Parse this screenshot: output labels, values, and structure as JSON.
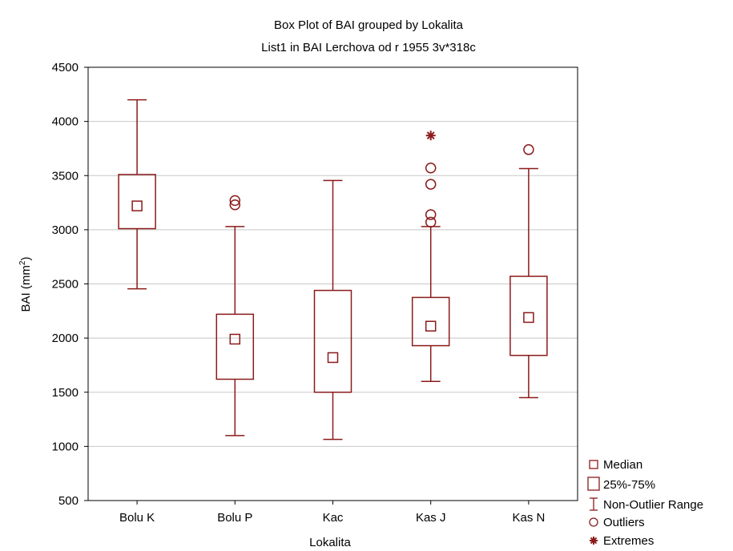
{
  "chart_data": {
    "type": "box",
    "title": "Box Plot of BAI grouped by  Lokalita",
    "subtitle": "List1 in BAI Lerchova od r 1955 3v*318c",
    "xlabel": "Lokalita",
    "ylabel": "BAI (mm²)",
    "ylabel_base": "BAI (mm",
    "ylabel_sup": "2",
    "ylabel_end": ")",
    "ylim": [
      500,
      4500
    ],
    "yticks": [
      500,
      1000,
      1500,
      2000,
      2500,
      3000,
      3500,
      4000,
      4500
    ],
    "grid": "horizontal",
    "categories": [
      "Bolu K",
      "Bolu P",
      "Kac",
      "Kas J",
      "Kas N"
    ],
    "boxes": [
      {
        "category": "Bolu K",
        "min": 2455,
        "q1": 3010,
        "median": 3220,
        "q3": 3510,
        "max": 4200,
        "outliers": [],
        "extremes": []
      },
      {
        "category": "Bolu P",
        "min": 1100,
        "q1": 1620,
        "median": 1990,
        "q3": 2220,
        "max": 3030,
        "outliers": [
          3230,
          3270
        ],
        "extremes": []
      },
      {
        "category": "Kac",
        "min": 1065,
        "q1": 1500,
        "median": 1820,
        "q3": 2440,
        "max": 3455,
        "outliers": [],
        "extremes": []
      },
      {
        "category": "Kas J",
        "min": 1600,
        "q1": 1930,
        "median": 2110,
        "q3": 2375,
        "max": 3030,
        "outliers": [
          3070,
          3140,
          3420,
          3570
        ],
        "extremes": [
          3870
        ]
      },
      {
        "category": "Kas N",
        "min": 1450,
        "q1": 1840,
        "median": 2190,
        "q3": 2570,
        "max": 3565,
        "outliers": [
          3740
        ],
        "extremes": []
      }
    ],
    "legend_position": "bottom-right",
    "legend": [
      {
        "symbol": "small-square",
        "label": "Median"
      },
      {
        "symbol": "box",
        "label": "25%-75%"
      },
      {
        "symbol": "whisker",
        "label": "Non-Outlier Range"
      },
      {
        "symbol": "circle",
        "label": "Outliers"
      },
      {
        "symbol": "asterisk",
        "label": "Extremes"
      }
    ],
    "colors": {
      "series": "#8b1a1a",
      "grid": "#c8c8c8",
      "frame": "#000000"
    }
  }
}
